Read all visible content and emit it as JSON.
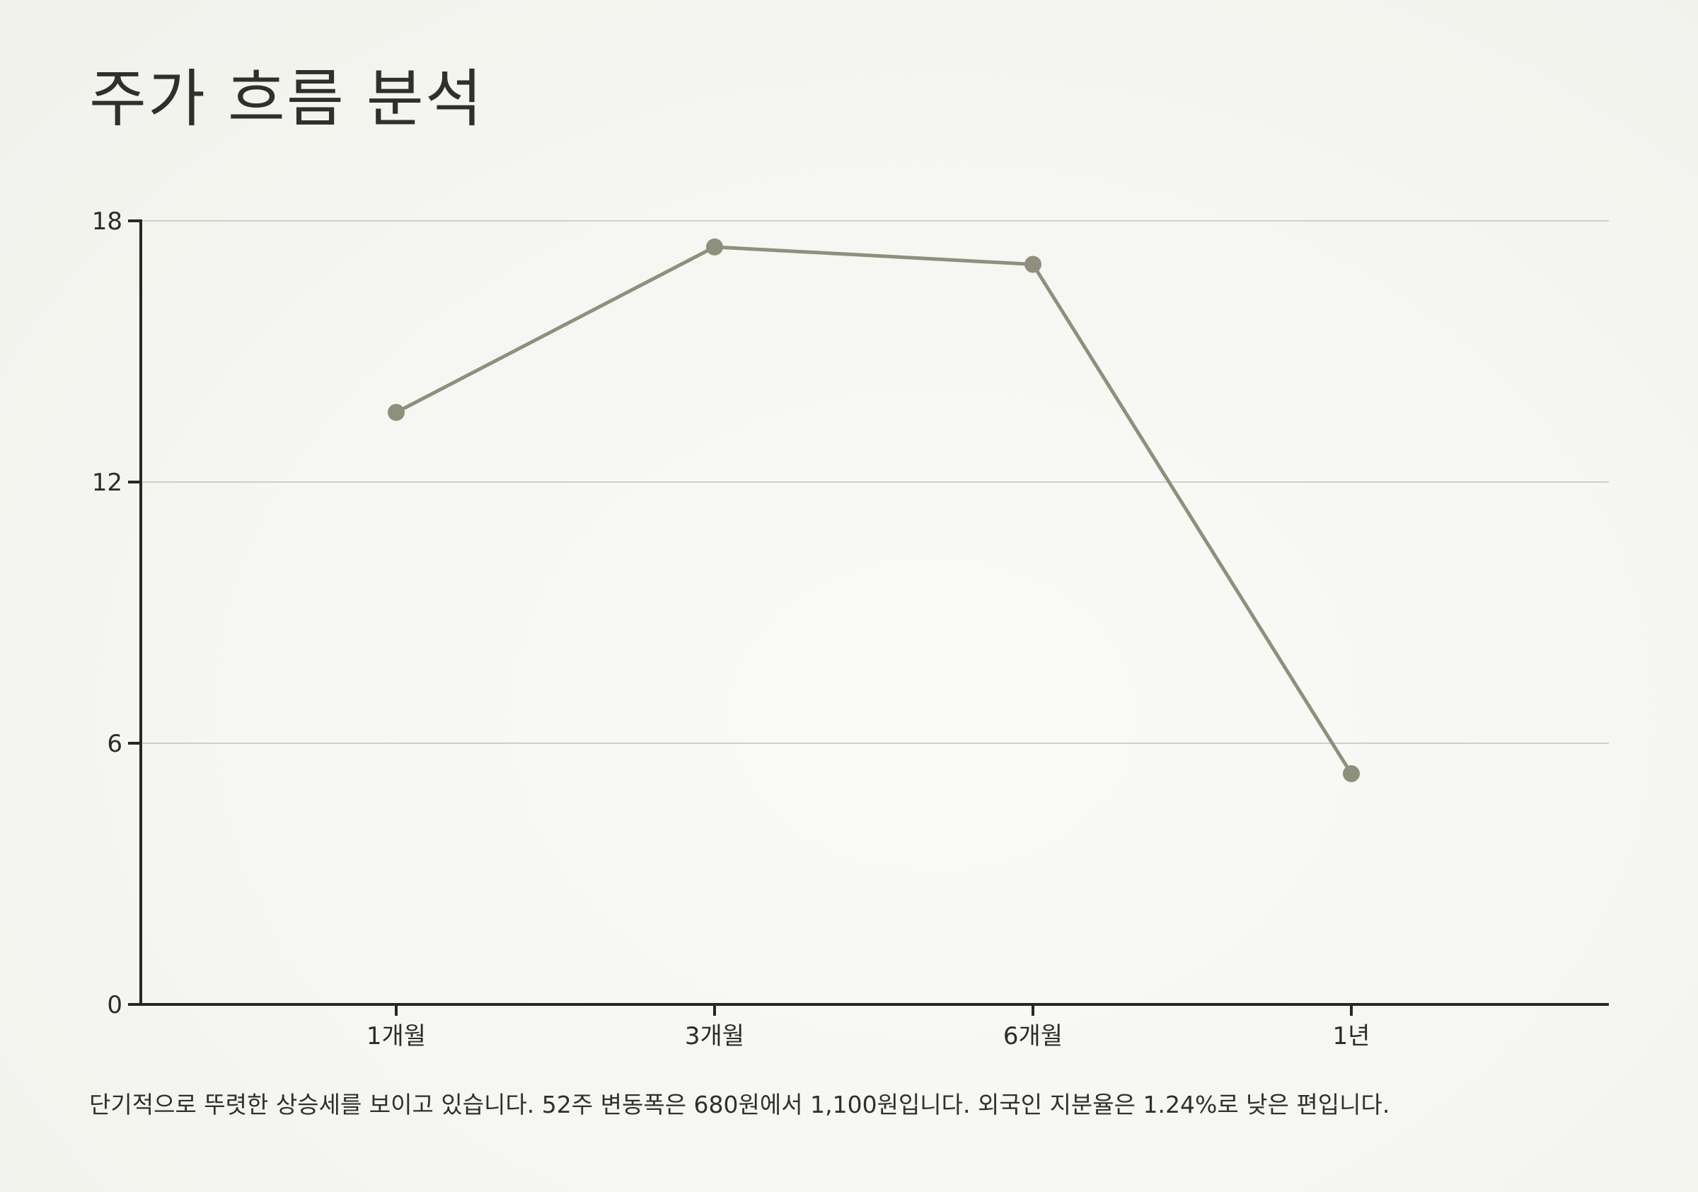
{
  "page": {
    "title": "주가 흐름 분석",
    "note": "단기적으로 뚜렷한 상승세를 보이고 있습니다. 52주 변동폭은 680원에서 1,100원입니다. 외국인 지분율은 1.24%로 낮은 편입니다."
  },
  "colors": {
    "line": "#8e907b",
    "grid": "#cfcfca",
    "axis": "#262624"
  },
  "chart_data": {
    "type": "line",
    "title": "주가 흐름 분석",
    "xlabel": "",
    "ylabel": "",
    "categories": [
      "1개월",
      "3개월",
      "6개월",
      "1년"
    ],
    "series": [
      {
        "values": [
          13.6,
          17.4,
          17.0,
          5.3
        ]
      }
    ],
    "ylim": [
      0,
      18
    ],
    "yticks": [
      0,
      6,
      12,
      18
    ],
    "grid": true,
    "legend": "none"
  }
}
